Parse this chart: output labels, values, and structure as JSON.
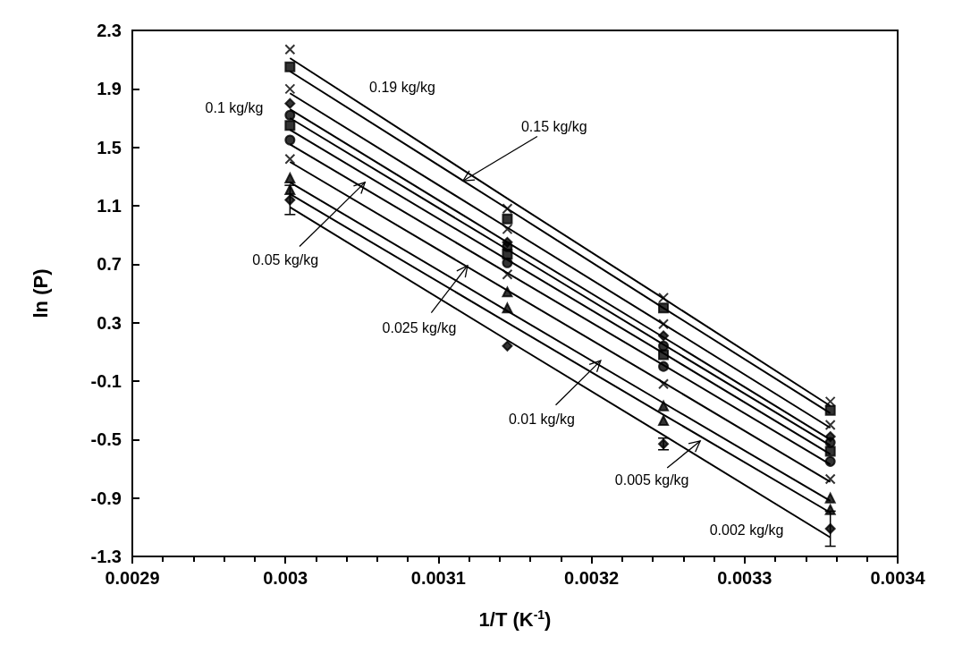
{
  "chart_data": {
    "type": "scatter",
    "xlabel": "1/T (K$^{-1}$)",
    "ylabel": "ln (P)",
    "xlim": [
      0.0029,
      0.0034
    ],
    "xticks": [
      0.0029,
      0.003,
      0.0031,
      0.0032,
      0.0033,
      0.0034
    ],
    "ylim": [
      -1.3,
      2.3
    ],
    "yticks": [
      -1.3,
      -0.9,
      -0.5,
      -0.1,
      0.3,
      0.7,
      1.1,
      1.5,
      1.9,
      2.3
    ],
    "grid": false,
    "x": [
      0.003003,
      0.003145,
      0.003247,
      0.003356
    ],
    "series": [
      {
        "color": "#000000",
        "marker": "cross",
        "values": [
          2.17,
          1.08,
          0.47,
          -0.24
        ]
      },
      {
        "color": "#000000",
        "marker": "square",
        "values": [
          2.05,
          1.01,
          0.4,
          -0.3
        ]
      },
      {
        "color": "#000000",
        "marker": "cross",
        "values": [
          1.9,
          0.94,
          0.29,
          -0.4
        ]
      },
      {
        "color": "#000000",
        "marker": "diamond",
        "values": [
          1.8,
          0.85,
          0.21,
          -0.48
        ]
      },
      {
        "color": "#000000",
        "marker": "circle",
        "values": [
          1.72,
          0.82,
          0.14,
          -0.52
        ]
      },
      {
        "color": "#000000",
        "marker": "square",
        "values": [
          1.65,
          0.77,
          0.08,
          -0.58
        ]
      },
      {
        "color": "#000000",
        "marker": "circle",
        "values": [
          1.55,
          0.71,
          0.0,
          -0.65
        ]
      },
      {
        "color": "#000000",
        "marker": "cross",
        "values": [
          1.42,
          0.63,
          -0.12,
          -0.77
        ]
      },
      {
        "color": "#000000",
        "marker": "triangle",
        "values": [
          1.29,
          0.51,
          -0.27,
          -0.9
        ]
      },
      {
        "color": "#000000",
        "marker": "triangle",
        "values": [
          1.21,
          0.4,
          -0.37,
          -0.98
        ]
      },
      {
        "color": "#000000",
        "marker": "diamond",
        "values": [
          1.14,
          0.14,
          -0.53,
          -1.11
        ],
        "errors": [
          0.1,
          null,
          0.04,
          0.12
        ]
      },
      {
        "type": "line",
        "color": "#000000",
        "marker": "none",
        "values": [
          2.11,
          1.15,
          0.465,
          -0.27
        ]
      },
      {
        "type": "line",
        "color": "#000000",
        "marker": "none",
        "values": [
          2.02,
          1.08,
          0.4,
          -0.32
        ]
      },
      {
        "type": "line",
        "color": "#000000",
        "marker": "none",
        "values": [
          1.87,
          0.95,
          0.29,
          -0.42
        ]
      },
      {
        "type": "line",
        "color": "#000000",
        "marker": "none",
        "values": [
          1.76,
          0.85,
          0.2,
          -0.5
        ]
      },
      {
        "type": "line",
        "color": "#000000",
        "marker": "none",
        "values": [
          1.7,
          0.8,
          0.15,
          -0.54
        ]
      },
      {
        "type": "line",
        "color": "#000000",
        "marker": "none",
        "values": [
          1.62,
          0.73,
          0.09,
          -0.6
        ]
      },
      {
        "type": "line",
        "color": "#000000",
        "marker": "none",
        "values": [
          1.52,
          0.64,
          0.01,
          -0.67
        ]
      },
      {
        "type": "line",
        "color": "#000000",
        "marker": "none",
        "values": [
          1.4,
          0.52,
          -0.11,
          -0.79
        ]
      },
      {
        "type": "line",
        "color": "#000000",
        "marker": "none",
        "values": [
          1.26,
          0.38,
          -0.25,
          -0.92
        ]
      },
      {
        "type": "line",
        "color": "#000000",
        "marker": "none",
        "values": [
          1.18,
          0.3,
          -0.33,
          -1.0
        ]
      },
      {
        "type": "line",
        "color": "#000000",
        "marker": "none",
        "values": [
          1.09,
          0.18,
          -0.47,
          -1.17
        ]
      }
    ],
    "annotations": [
      "0.19 kg/kg",
      {
        "text": "0.15 kg/kg",
        "x": 0.003116,
        "y": 1.27
      },
      "0.1 kg/kg",
      {
        "text": "0.05 kg/kg",
        "x": 0.003052,
        "y": 1.26
      },
      {
        "text": "0.025 kg/kg",
        "x": 0.003119,
        "y": 0.69
      },
      {
        "text": "0.01 kg/kg",
        "x": 0.003206,
        "y": 0.04
      },
      {
        "text": "0.005 kg/kg",
        "x": 0.003271,
        "y": -0.51
      },
      "0.002 kg/kg"
    ]
  }
}
